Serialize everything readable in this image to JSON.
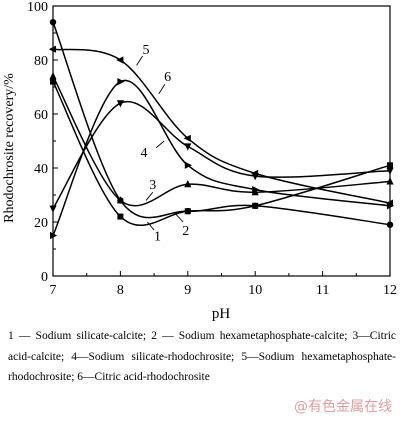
{
  "chart_data": {
    "type": "line",
    "xlabel": "pH",
    "ylabel": "Rhodochrosite recovery/%",
    "xlim": [
      7,
      12
    ],
    "ylim": [
      0,
      100
    ],
    "xticks": [
      7,
      8,
      9,
      10,
      11,
      12
    ],
    "yticks": [
      0,
      20,
      40,
      60,
      80,
      100
    ],
    "grid": false,
    "series": [
      {
        "name": "1",
        "marker": "circle",
        "x": [
          7,
          8,
          9,
          10,
          12
        ],
        "y": [
          94,
          28,
          24,
          26,
          19
        ]
      },
      {
        "name": "2",
        "marker": "square",
        "x": [
          7,
          8,
          9,
          10,
          12
        ],
        "y": [
          72,
          22,
          24,
          26,
          41
        ]
      },
      {
        "name": "3",
        "marker": "triangle",
        "x": [
          7,
          8,
          9,
          10,
          12
        ],
        "y": [
          74,
          28,
          34,
          31,
          35
        ]
      },
      {
        "name": "4",
        "marker": "triangle-down",
        "x": [
          7,
          8,
          9,
          10,
          12
        ],
        "y": [
          25,
          64,
          48,
          37,
          39
        ]
      },
      {
        "name": "5",
        "marker": "triangle-left",
        "x": [
          7,
          8,
          9,
          10,
          12
        ],
        "y": [
          84,
          80,
          51,
          38,
          27
        ]
      },
      {
        "name": "6",
        "marker": "triangle-right",
        "x": [
          7,
          8,
          9,
          10,
          12
        ],
        "y": [
          15,
          72,
          41,
          32,
          26
        ]
      }
    ],
    "curve_labels": [
      "1",
      "2",
      "3",
      "4",
      "5",
      "6"
    ]
  },
  "legend_text": "1 — Sodium silicate-calcite; 2 — Sodium hexametaphosphate-calcite; 3—Citric acid-calcite; 4—Sodium silicate-rhodochrosite; 5—Sodium hexametaphosphate-rhodochrosite; 6—Citric acid-rhodochrosite",
  "watermark": "@有色金属在线"
}
